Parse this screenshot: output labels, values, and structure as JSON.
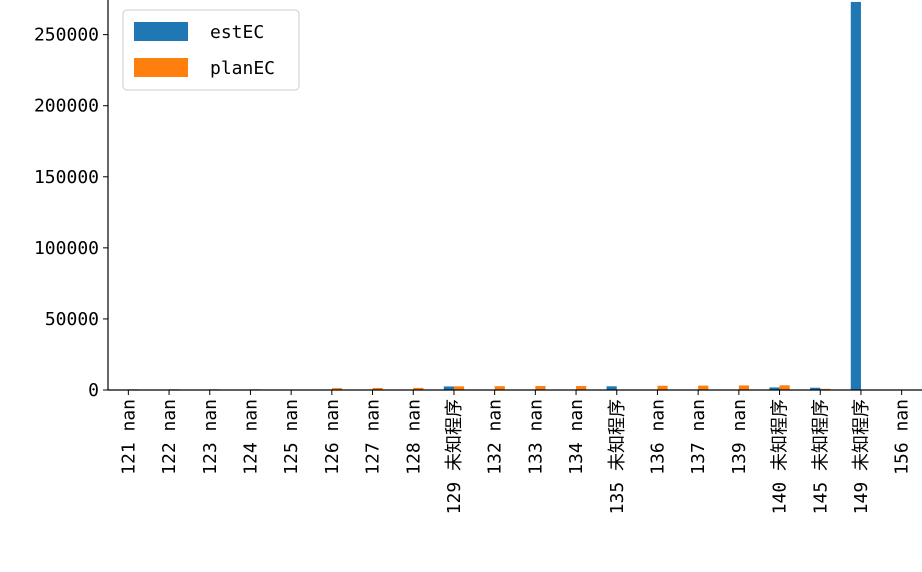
{
  "chart_data": {
    "type": "bar",
    "categories": [
      "121 nan",
      "122 nan",
      "123 nan",
      "124 nan",
      "125 nan",
      "126 nan",
      "127 nan",
      "128 nan",
      "129 未知程序",
      "132 nan",
      "133 nan",
      "134 nan",
      "135 未知程序",
      "136 nan",
      "137 nan",
      "139 nan",
      "140 未知程序",
      "145 未知程序",
      "149 未知程序",
      "156 nan"
    ],
    "series": [
      {
        "name": "estEC",
        "color": "#1f77b4",
        "values": [
          0,
          0,
          0,
          0,
          0,
          0,
          0,
          0,
          2500,
          0,
          0,
          0,
          2600,
          0,
          0,
          0,
          1800,
          1600,
          273000,
          0
        ]
      },
      {
        "name": "planEC",
        "color": "#ff7f0e",
        "values": [
          500,
          500,
          500,
          500,
          200,
          1300,
          1400,
          1500,
          2600,
          2700,
          2800,
          2800,
          0,
          3000,
          3100,
          3200,
          3300,
          800,
          0,
          0
        ]
      }
    ],
    "yticks": [
      "0",
      "50000",
      "100000",
      "150000",
      "200000",
      "250000"
    ],
    "ylim": [
      0,
      280000
    ],
    "title": "",
    "xlabel": "",
    "ylabel": "",
    "legend": "upper-left",
    "grid": false
  }
}
